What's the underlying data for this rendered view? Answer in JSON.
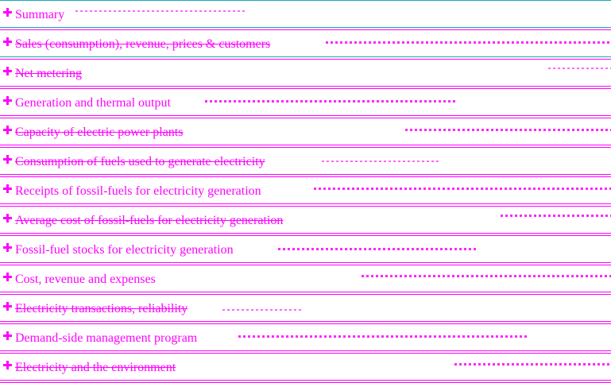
{
  "sections": [
    {
      "label": "Summary"
    },
    {
      "label": "Sales (consumption), revenue, prices & customers"
    },
    {
      "label": "Net metering"
    },
    {
      "label": "Generation and thermal output"
    },
    {
      "label": "Capacity of electric power plants"
    },
    {
      "label": "Consumption of fuels used to generate electricity"
    },
    {
      "label": "Receipts of fossil-fuels for electricity generation"
    },
    {
      "label": "Average cost of fossil-fuels for electricity generation"
    },
    {
      "label": "Fossil-fuel stocks for electricity generation"
    },
    {
      "label": "Cost, revenue and expenses"
    },
    {
      "label": "Electricity transactions, reliability"
    },
    {
      "label": "Demand-side management program"
    },
    {
      "label": "Electricity and the environment"
    }
  ],
  "colors": {
    "text": "#ff00ff",
    "rule": "#ff00ff",
    "accent_rule": "#1aa7b8"
  },
  "icon": "expand-plus-icon"
}
